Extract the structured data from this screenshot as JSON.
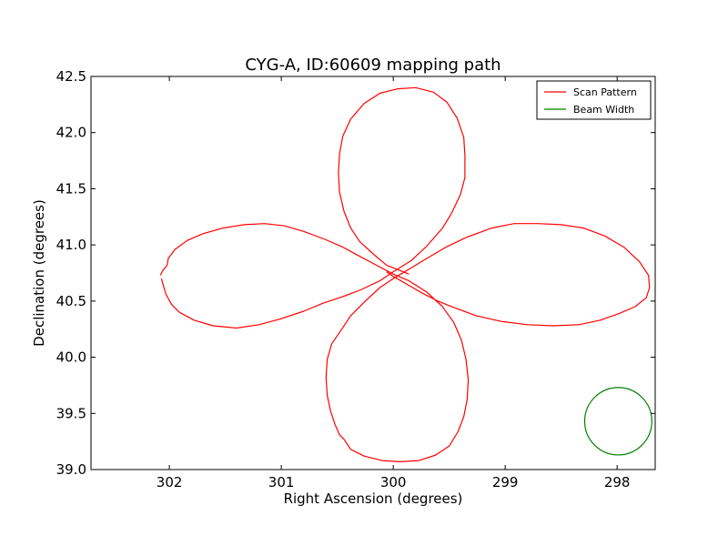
{
  "chart_data": {
    "type": "line",
    "title": "CYG-A, ID:60609 mapping path",
    "xlabel": "Right Ascension (degrees)",
    "ylabel": "Declination (degrees)",
    "xlim": [
      302.7,
      297.66
    ],
    "ylim": [
      39.0,
      42.5
    ],
    "x_inverted": true,
    "grid": false,
    "legend_position": "top-right",
    "xticks": [
      302,
      301,
      300,
      299,
      298
    ],
    "xtick_labels": [
      "302",
      "301",
      "300",
      "299",
      "298"
    ],
    "yticks": [
      39.0,
      39.5,
      40.0,
      40.5,
      41.0,
      41.5,
      42.0,
      42.5
    ],
    "ytick_labels": [
      "39.0",
      "39.5",
      "40.0",
      "40.5",
      "41.0",
      "41.5",
      "42.0",
      "42.5"
    ],
    "series": [
      {
        "name": "Scan Pattern",
        "color": "#ff0000",
        "style": "path",
        "segments": [
          [
            [
              299.86,
              40.74
            ],
            [
              300.06,
              40.82
            ],
            [
              300.18,
              40.92
            ],
            [
              300.3,
              41.03
            ],
            [
              300.38,
              41.15
            ],
            [
              300.44,
              41.3
            ],
            [
              300.48,
              41.47
            ],
            [
              300.49,
              41.64
            ],
            [
              300.48,
              41.81
            ],
            [
              300.45,
              41.97
            ],
            [
              300.38,
              42.12
            ],
            [
              300.26,
              42.26
            ],
            [
              300.12,
              42.35
            ],
            [
              299.96,
              42.39
            ],
            [
              299.8,
              42.4
            ],
            [
              299.64,
              42.36
            ],
            [
              299.52,
              42.27
            ],
            [
              299.43,
              42.13
            ],
            [
              299.37,
              41.96
            ],
            [
              299.36,
              41.8
            ],
            [
              299.36,
              41.6
            ],
            [
              299.4,
              41.45
            ],
            [
              299.48,
              41.28
            ],
            [
              299.56,
              41.15
            ],
            [
              299.7,
              40.99
            ],
            [
              299.84,
              40.86
            ],
            [
              300.0,
              40.76
            ],
            [
              300.12,
              40.68
            ],
            [
              300.29,
              40.6
            ],
            [
              300.45,
              40.54
            ],
            [
              300.63,
              40.48
            ],
            [
              300.8,
              40.41
            ],
            [
              301.01,
              40.34
            ],
            [
              301.2,
              40.29
            ],
            [
              301.4,
              40.26
            ],
            [
              301.61,
              40.28
            ],
            [
              301.78,
              40.33
            ],
            [
              301.91,
              40.4
            ],
            [
              301.98,
              40.47
            ],
            [
              302.03,
              40.56
            ],
            [
              302.06,
              40.66
            ],
            [
              302.07,
              40.7
            ]
          ],
          [
            [
              302.08,
              40.73
            ],
            [
              302.06,
              40.77
            ],
            [
              302.02,
              40.82
            ],
            [
              302.01,
              40.88
            ],
            [
              301.95,
              40.96
            ],
            [
              301.84,
              41.04
            ],
            [
              301.7,
              41.1
            ],
            [
              301.52,
              41.15
            ],
            [
              301.33,
              41.18
            ],
            [
              301.15,
              41.19
            ],
            [
              300.97,
              41.17
            ],
            [
              300.8,
              41.12
            ],
            [
              300.61,
              41.05
            ],
            [
              300.45,
              40.98
            ],
            [
              300.32,
              40.91
            ],
            [
              300.17,
              40.83
            ],
            [
              300.0,
              40.74
            ],
            [
              299.86,
              40.68
            ],
            [
              299.7,
              40.58
            ],
            [
              299.56,
              40.45
            ],
            [
              299.46,
              40.31
            ],
            [
              299.39,
              40.15
            ],
            [
              299.35,
              39.98
            ],
            [
              299.33,
              39.8
            ],
            [
              299.34,
              39.62
            ],
            [
              299.37,
              39.47
            ],
            [
              299.42,
              39.34
            ],
            [
              299.5,
              39.21
            ],
            [
              299.62,
              39.13
            ],
            [
              299.77,
              39.08
            ],
            [
              299.94,
              39.07
            ],
            [
              300.1,
              39.08
            ],
            [
              300.26,
              39.12
            ],
            [
              300.38,
              39.18
            ],
            [
              300.44,
              39.27
            ],
            [
              300.48,
              39.31
            ],
            [
              300.52,
              39.4
            ],
            [
              300.56,
              39.52
            ],
            [
              300.59,
              39.66
            ],
            [
              300.6,
              39.82
            ],
            [
              300.59,
              39.98
            ],
            [
              300.55,
              40.12
            ],
            [
              300.46,
              40.25
            ],
            [
              300.38,
              40.37
            ],
            [
              300.25,
              40.5
            ],
            [
              300.12,
              40.62
            ],
            [
              300.0,
              40.7
            ],
            [
              299.85,
              40.79
            ],
            [
              299.7,
              40.88
            ],
            [
              299.53,
              40.98
            ],
            [
              299.34,
              41.07
            ],
            [
              299.12,
              41.15
            ],
            [
              298.92,
              41.19
            ],
            [
              298.71,
              41.19
            ],
            [
              298.5,
              41.18
            ],
            [
              298.3,
              41.15
            ],
            [
              298.11,
              41.08
            ],
            [
              297.94,
              40.98
            ],
            [
              297.8,
              40.85
            ],
            [
              297.72,
              40.73
            ],
            [
              297.71,
              40.62
            ],
            [
              297.74,
              40.53
            ],
            [
              297.84,
              40.45
            ],
            [
              297.98,
              40.39
            ],
            [
              298.15,
              40.33
            ],
            [
              298.34,
              40.29
            ],
            [
              298.57,
              40.28
            ],
            [
              298.8,
              40.29
            ],
            [
              299.04,
              40.32
            ],
            [
              299.26,
              40.37
            ],
            [
              299.45,
              40.44
            ],
            [
              299.6,
              40.5
            ],
            [
              299.74,
              40.57
            ],
            [
              299.86,
              40.64
            ],
            [
              300.0,
              40.72
            ],
            [
              300.06,
              40.76
            ]
          ]
        ]
      },
      {
        "name": "Beam Width",
        "color": "#008000",
        "style": "circle",
        "center": [
          297.99,
          39.43
        ],
        "radius_deg": 0.3
      }
    ]
  }
}
